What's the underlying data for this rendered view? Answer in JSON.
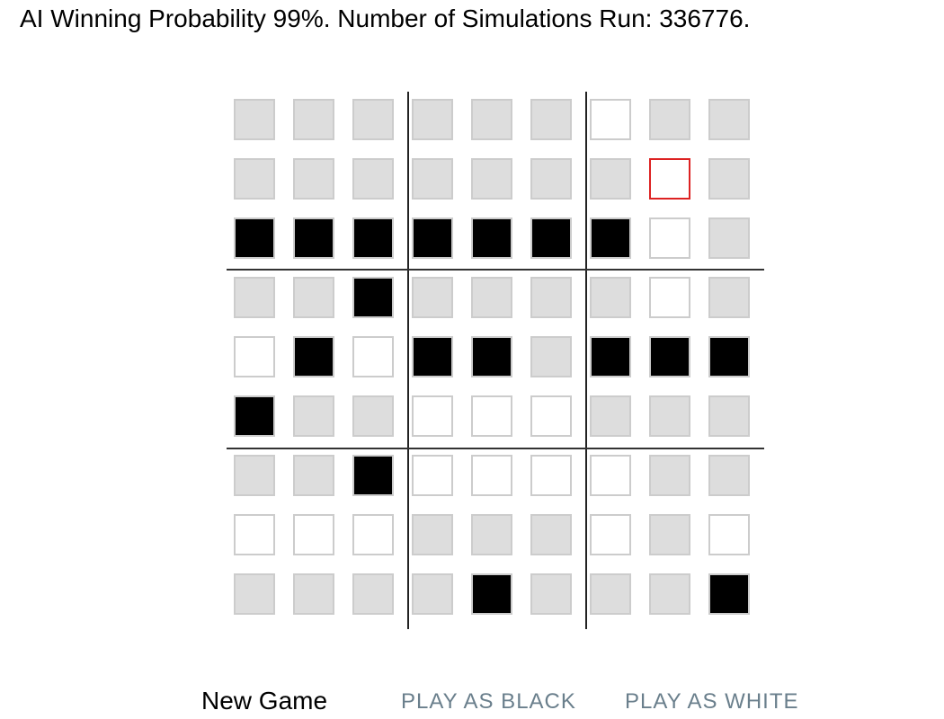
{
  "status": {
    "text": "AI Winning Probability 99%. Number of Simulations Run: 336776."
  },
  "board": {
    "size": 9,
    "selected": [
      1,
      7
    ],
    "rows": [
      "EEEEEEWEE",
      "EEEEEEEWE",
      "BBBBBBBWE",
      "EEBEEEEWE",
      "WBWBBEBBB",
      "BEEWWWEEE",
      "EEBWWWWEE",
      "WWWEEEWEW",
      "EEEEBEEEB"
    ],
    "legend": {
      "E": "empty",
      "W": "white",
      "B": "black"
    },
    "colors": {
      "empty": "#dddddd",
      "white": "#ffffff",
      "black": "#000000",
      "border": "#cccccc",
      "selected_border": "#dd2222",
      "divider": "#222222"
    }
  },
  "controls": {
    "new_game_label": "New Game",
    "play_black_label": "PLAY AS BLACK",
    "play_white_label": "PLAY AS WHITE",
    "accent": "#6a7f8c"
  }
}
